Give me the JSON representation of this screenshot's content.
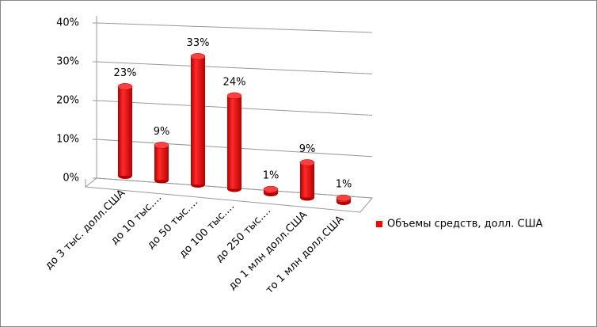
{
  "chart_data": {
    "type": "bar3d",
    "categories": [
      "до 3 тыс. долл.США",
      "до 10 тыс.…",
      "до 50 тыс.…",
      "до 100 тыс.…",
      "до 250 тыс.…",
      "до 1 млн  долл.США",
      "то 1 млн  долл.США"
    ],
    "series": [
      {
        "name": "Объемы средств, долл. США",
        "color": "#ff0000",
        "values": [
          23,
          9,
          33,
          24,
          1,
          9,
          1
        ],
        "value_labels": [
          "23%",
          "9%",
          "33%",
          "24%",
          "1%",
          "9%",
          "1%"
        ]
      }
    ],
    "ylim": [
      0,
      40
    ],
    "yticks": [
      {
        "value": 0,
        "label": "0%"
      },
      {
        "value": 10,
        "label": "10%"
      },
      {
        "value": 20,
        "label": "20%"
      },
      {
        "value": 30,
        "label": "30%"
      },
      {
        "value": 40,
        "label": "40%"
      }
    ],
    "grid": true,
    "legend": "right"
  }
}
